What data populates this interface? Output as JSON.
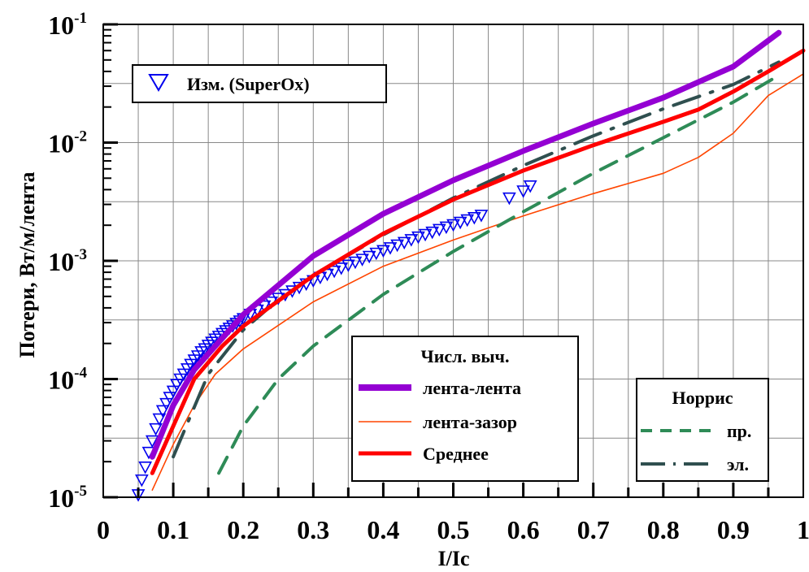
{
  "chart_data": {
    "type": "line",
    "xlabel": "I/Ic",
    "ylabel": "Потери, Вт/м/лента",
    "xlim": [
      0,
      1
    ],
    "ylim": [
      1e-05,
      0.1
    ],
    "y_scale": "log",
    "grid": true,
    "x_ticks": [
      "0",
      "0.1",
      "0.2",
      "0.3",
      "0.4",
      "0.5",
      "0.6",
      "0.7",
      "0.8",
      "0.9",
      "1"
    ],
    "x_tick_values": [
      0,
      0.1,
      0.2,
      0.3,
      0.4,
      0.5,
      0.6,
      0.7,
      0.8,
      0.9,
      1
    ],
    "y_ticks": [
      {
        "base": "10",
        "exp": "-5",
        "value": 1e-05
      },
      {
        "base": "10",
        "exp": "-4",
        "value": 0.0001
      },
      {
        "base": "10",
        "exp": "-3",
        "value": 0.001
      },
      {
        "base": "10",
        "exp": "-2",
        "value": 0.01
      },
      {
        "base": "10",
        "exp": "-1",
        "value": 0.1
      }
    ],
    "legend_measured": {
      "label": "Изм. (SuperOx)",
      "placement": "top-left"
    },
    "legend_numeric": {
      "title": "Числ. выч.",
      "placement": "bottom-center"
    },
    "legend_norris": {
      "title": "Норрис",
      "placement": "bottom-right"
    },
    "series": [
      {
        "name": "Изм. (SuperOx)",
        "kind": "markers",
        "color": "#0000ee",
        "x": [
          0.05,
          0.055,
          0.06,
          0.065,
          0.07,
          0.075,
          0.08,
          0.085,
          0.09,
          0.095,
          0.1,
          0.105,
          0.11,
          0.115,
          0.12,
          0.125,
          0.13,
          0.135,
          0.14,
          0.145,
          0.15,
          0.155,
          0.16,
          0.165,
          0.17,
          0.175,
          0.18,
          0.185,
          0.19,
          0.195,
          0.2,
          0.21,
          0.22,
          0.23,
          0.24,
          0.25,
          0.26,
          0.27,
          0.28,
          0.29,
          0.3,
          0.31,
          0.32,
          0.33,
          0.34,
          0.35,
          0.36,
          0.37,
          0.38,
          0.39,
          0.4,
          0.41,
          0.42,
          0.43,
          0.44,
          0.45,
          0.46,
          0.47,
          0.48,
          0.49,
          0.5,
          0.51,
          0.52,
          0.53,
          0.54,
          0.58,
          0.6,
          0.61
        ],
        "y": [
          1.05e-05,
          1.4e-05,
          1.8e-05,
          2.4e-05,
          3e-05,
          3.8e-05,
          4.6e-05,
          5.4e-05,
          6.2e-05,
          7e-05,
          7.9e-05,
          9e-05,
          0.0001,
          0.00011,
          0.000122,
          0.000133,
          0.000145,
          0.000157,
          0.00017,
          0.00018,
          0.000193,
          0.000205,
          0.000218,
          0.00023,
          0.000243,
          0.000256,
          0.000269,
          0.000282,
          0.000296,
          0.00031,
          0.000324,
          0.000353,
          0.000383,
          0.000415,
          0.000448,
          0.000482,
          0.000518,
          0.000556,
          0.000596,
          0.000638,
          0.00068,
          0.000725,
          0.00077,
          0.000818,
          0.000868,
          0.00092,
          0.000975,
          0.00103,
          0.00109,
          0.00116,
          0.00122,
          0.00129,
          0.00136,
          0.00143,
          0.00151,
          0.00159,
          0.00167,
          0.00175,
          0.00184,
          0.00193,
          0.00202,
          0.00212,
          0.00222,
          0.00232,
          0.00243,
          0.0034,
          0.0039,
          0.0043
        ]
      },
      {
        "name": "лента-лента",
        "kind": "line",
        "color": "#9400d3",
        "x": [
          0.07,
          0.1,
          0.13,
          0.2,
          0.3,
          0.4,
          0.5,
          0.6,
          0.7,
          0.8,
          0.9,
          0.965
        ],
        "y": [
          2.2e-05,
          6e-05,
          0.00012,
          0.00035,
          0.0011,
          0.0025,
          0.0048,
          0.0085,
          0.0145,
          0.024,
          0.044,
          0.085
        ]
      },
      {
        "name": "лента-зазор",
        "kind": "line",
        "color": "#ff4500",
        "x": [
          0.07,
          0.1,
          0.13,
          0.16,
          0.2,
          0.3,
          0.4,
          0.5,
          0.6,
          0.7,
          0.8,
          0.85,
          0.9,
          0.95,
          1.0
        ],
        "y": [
          1.15e-05,
          2.8e-05,
          6e-05,
          0.00011,
          0.00018,
          0.00045,
          0.0009,
          0.0015,
          0.0024,
          0.0037,
          0.0055,
          0.0075,
          0.012,
          0.025,
          0.038
        ]
      },
      {
        "name": "Среднее",
        "kind": "line",
        "color": "#ff0000",
        "x": [
          0.07,
          0.1,
          0.13,
          0.17,
          0.2,
          0.3,
          0.4,
          0.5,
          0.6,
          0.7,
          0.8,
          0.85,
          0.9,
          0.95,
          1.0
        ],
        "y": [
          1.6e-05,
          4e-05,
          0.0001,
          0.00019,
          0.00028,
          0.00075,
          0.0017,
          0.0033,
          0.0058,
          0.0095,
          0.015,
          0.019,
          0.027,
          0.04,
          0.06
        ]
      },
      {
        "name": "пр.",
        "kind": "dashed",
        "color": "#2e8b57",
        "x": [
          0.165,
          0.2,
          0.25,
          0.3,
          0.4,
          0.5,
          0.6,
          0.7,
          0.8,
          0.9,
          0.965
        ],
        "y": [
          1.6e-05,
          4e-05,
          0.0001,
          0.00019,
          0.00052,
          0.0012,
          0.0026,
          0.0055,
          0.011,
          0.022,
          0.037
        ]
      },
      {
        "name": "эл.",
        "kind": "dashdot",
        "color": "#2f4f4f",
        "x": [
          0.1,
          0.15,
          0.2,
          0.25,
          0.3,
          0.4,
          0.5,
          0.6,
          0.7,
          0.8,
          0.9,
          0.965
        ],
        "y": [
          2.2e-05,
          0.00011,
          0.00026,
          0.00047,
          0.00075,
          0.00166,
          0.0034,
          0.0064,
          0.0114,
          0.0193,
          0.031,
          0.048
        ]
      }
    ]
  }
}
